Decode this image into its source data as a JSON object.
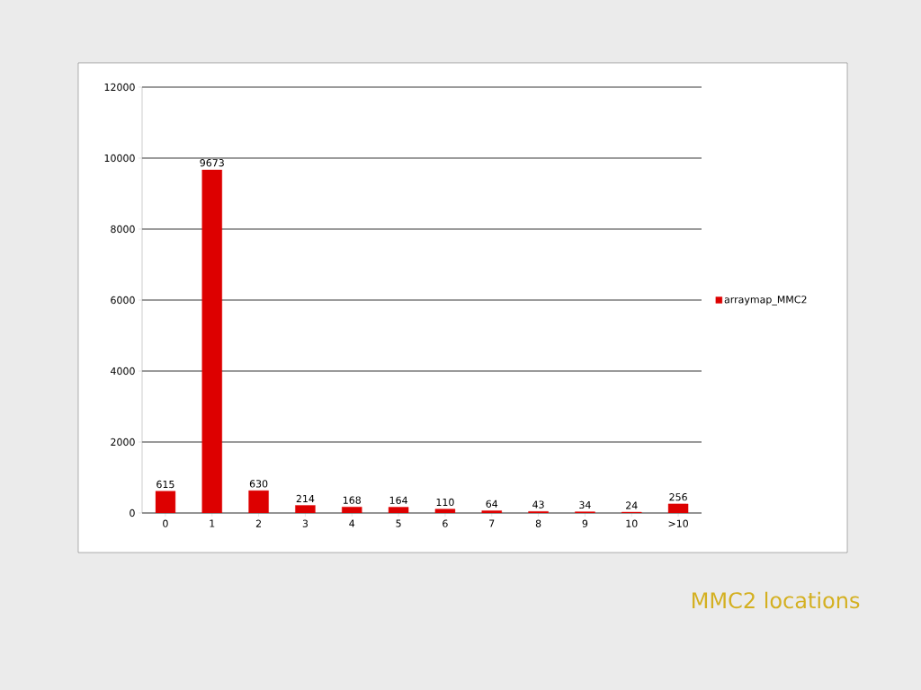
{
  "chart_data": {
    "type": "bar",
    "title": "MMC2 locations",
    "categories": [
      "0",
      "1",
      "2",
      "3",
      "4",
      "5",
      "6",
      "7",
      "8",
      "9",
      "10",
      ">10"
    ],
    "series": [
      {
        "name": "arraymap_MMC2",
        "color": "#dd0000",
        "values": [
          615,
          9673,
          630,
          214,
          168,
          164,
          110,
          64,
          43,
          34,
          24,
          256
        ]
      }
    ],
    "ylim": [
      0,
      12000
    ],
    "yticks": [
      0,
      2000,
      4000,
      6000,
      8000,
      10000,
      12000
    ],
    "grid": "y",
    "legend": "right",
    "data_labels": true
  }
}
